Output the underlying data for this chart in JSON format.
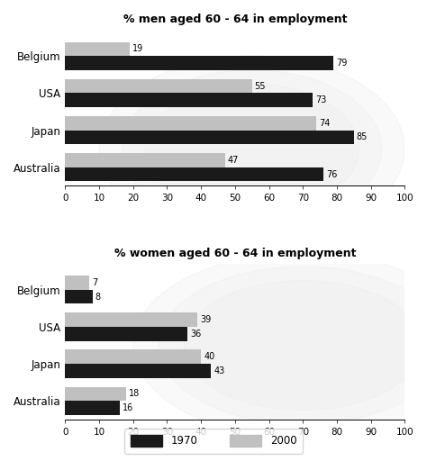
{
  "men_title": "% men aged 60 - 64 in employment",
  "women_title": "% women aged 60 - 64 in employment",
  "countries": [
    "Belgium",
    "USA",
    "Japan",
    "Australia"
  ],
  "men_1970": [
    79,
    73,
    85,
    76
  ],
  "men_2000": [
    19,
    55,
    74,
    47
  ],
  "women_1970": [
    8,
    36,
    43,
    16
  ],
  "women_2000": [
    7,
    39,
    40,
    18
  ],
  "color_1970": "#1a1a1a",
  "color_2000": "#c0c0c0",
  "xlim": [
    0,
    100
  ],
  "xticks": [
    0,
    10,
    20,
    30,
    40,
    50,
    60,
    70,
    80,
    90
  ],
  "xtick_extra": 100,
  "bar_height": 0.38,
  "legend_1970": "1970",
  "legend_2000": "2000",
  "background_color": "#ffffff"
}
